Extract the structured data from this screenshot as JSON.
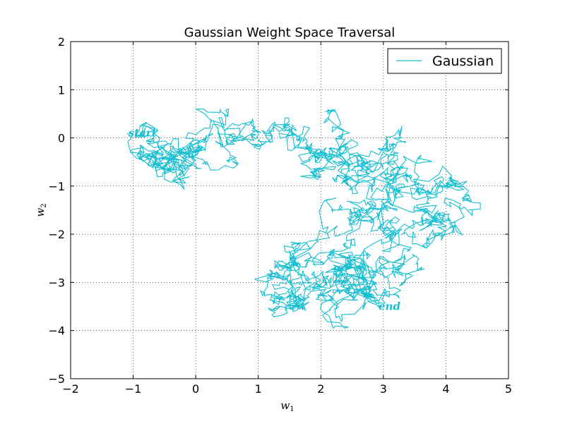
{
  "chart_data": {
    "type": "line",
    "title": "Gaussian Weight Space Traversal",
    "xlabel": "w",
    "xlabel_sub": "1",
    "ylabel": "w",
    "ylabel_sub": "2",
    "xlim": [
      -2,
      5
    ],
    "ylim": [
      -5,
      2
    ],
    "xticks": [
      -2,
      -1,
      0,
      1,
      2,
      3,
      4,
      5
    ],
    "yticks": [
      2,
      1,
      0,
      -1,
      -2,
      -3,
      -4,
      -5
    ],
    "xtick_labels": [
      "−2",
      "−1",
      "0",
      "1",
      "2",
      "3",
      "4",
      "5"
    ],
    "ytick_labels": [
      "2",
      "1",
      "0",
      "−1",
      "−2",
      "−3",
      "−4",
      "−5"
    ],
    "grid": true,
    "legend_position": "top-right",
    "series_color": "#17becf",
    "series": [
      {
        "name": "Gaussian",
        "start": [
          -1.1,
          0.1
        ],
        "end": [
          2.9,
          -3.5
        ],
        "waypoints": [
          [
            -1.1,
            0.1
          ],
          [
            -0.8,
            -0.3
          ],
          [
            -0.4,
            -0.25
          ],
          [
            0.1,
            -0.3
          ],
          [
            0.5,
            0.0
          ],
          [
            1.0,
            0.25
          ],
          [
            1.6,
            0.0
          ],
          [
            2.2,
            0.2
          ],
          [
            2.3,
            -0.5
          ],
          [
            2.9,
            -0.3
          ],
          [
            3.1,
            -0.9
          ],
          [
            3.6,
            -1.1
          ],
          [
            4.3,
            -1.2
          ],
          [
            3.9,
            -1.7
          ],
          [
            3.2,
            -2.0
          ],
          [
            2.6,
            -1.5
          ],
          [
            2.1,
            -2.0
          ],
          [
            2.4,
            -2.7
          ],
          [
            1.8,
            -2.9
          ],
          [
            1.2,
            -3.3
          ],
          [
            1.6,
            -3.5
          ],
          [
            2.2,
            -3.2
          ],
          [
            2.8,
            -3.0
          ],
          [
            3.3,
            -2.6
          ],
          [
            3.0,
            -3.3
          ],
          [
            2.9,
            -3.5
          ]
        ]
      }
    ],
    "annotations": [
      {
        "text": "start",
        "x": -1.1,
        "y": 0.1
      },
      {
        "text": "end",
        "x": 2.9,
        "y": -3.5
      }
    ]
  }
}
